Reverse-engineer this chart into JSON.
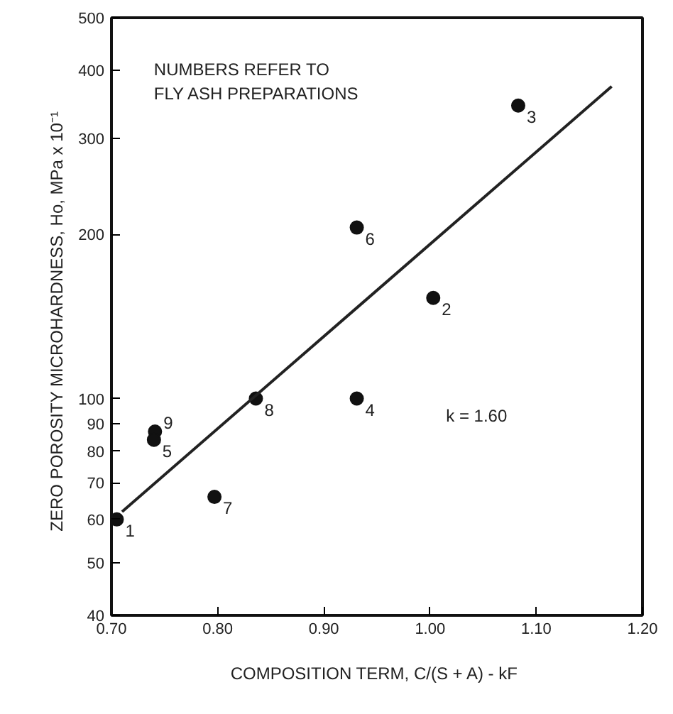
{
  "chart_data": {
    "type": "scatter",
    "xlabel": "COMPOSITION TERM,  C/(S + A) - kF",
    "ylabel": "ZERO POROSITY MICROHARDNESS,  Ho,  MPa x 10⁻¹",
    "log": "y",
    "xlim": [
      0.7,
      1.2
    ],
    "ylim": [
      40,
      500
    ],
    "xticks": [
      {
        "value": 0.7,
        "label": "0.70"
      },
      {
        "value": 0.8,
        "label": "0.80"
      },
      {
        "value": 0.9,
        "label": "0.90"
      },
      {
        "value": 1.0,
        "label": "1.00"
      },
      {
        "value": 1.1,
        "label": "1.10"
      },
      {
        "value": 1.2,
        "label": "1.20"
      }
    ],
    "yticks": [
      40,
      50,
      60,
      70,
      80,
      90,
      100,
      200,
      300,
      400,
      500
    ],
    "grid": false,
    "marker": "circle",
    "series": [
      {
        "color": "#111111",
        "x": [
          0.705,
          0.741,
          0.74,
          0.797,
          0.836,
          0.931,
          1.003,
          1.083,
          0.931
        ],
        "values": [
          60,
          87,
          84,
          66,
          100,
          206,
          153,
          345,
          100
        ]
      },
      {
        "type": "line",
        "color": "#222222",
        "line_style": "solid",
        "marker": "none",
        "x": [
          0.71,
          1.171
        ],
        "values": [
          62,
          374
        ]
      }
    ],
    "annotations": [
      "NUMBERS REFER TO\nFLY ASH PREPARATIONS",
      "k = 1.60",
      {
        "text": "1",
        "x": 0.705,
        "y": 60
      },
      {
        "text": "9",
        "x": 0.741,
        "y": 87
      },
      {
        "text": "5",
        "x": 0.74,
        "y": 84
      },
      {
        "text": "7",
        "x": 0.797,
        "y": 66
      },
      {
        "text": "8",
        "x": 0.836,
        "y": 100
      },
      {
        "text": "6",
        "x": 0.931,
        "y": 206
      },
      {
        "text": "2",
        "x": 1.003,
        "y": 153
      },
      {
        "text": "3",
        "x": 1.083,
        "y": 345
      },
      {
        "text": "4",
        "x": 0.931,
        "y": 100
      }
    ]
  }
}
